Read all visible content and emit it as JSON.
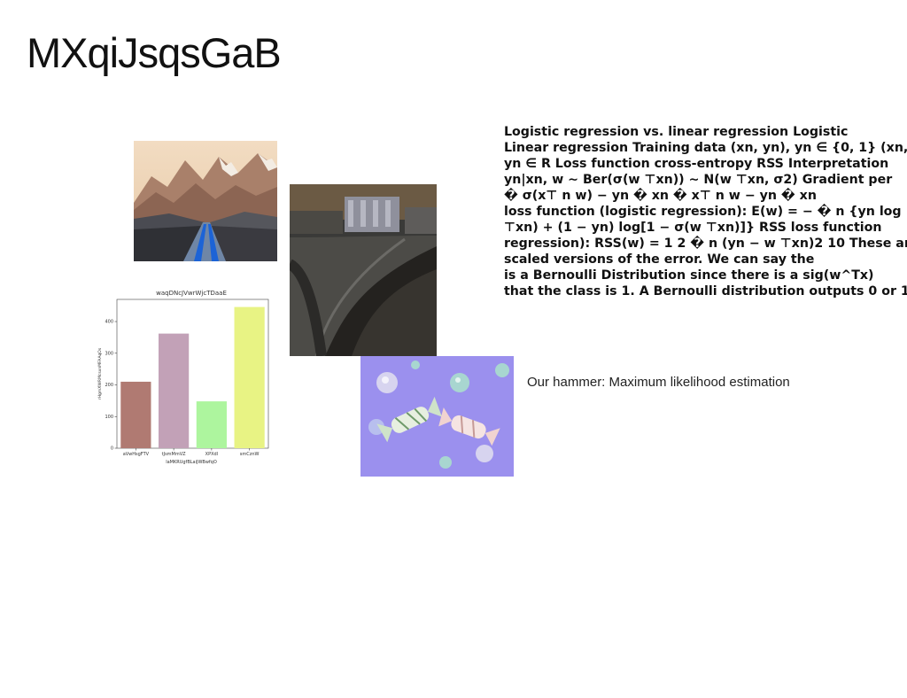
{
  "slide": {
    "title": "MXqiJsqsGaB",
    "body_text": "Logistic regression vs. linear regression Logistic\nLinear regression Training data (xn, yn), yn ∈ {0, 1} (xn,\nyn ∈ R Loss function cross-entropy RSS Interpretation\nyn|xn, w ∼ Ber(σ(w ⊤xn)) ∼ N(w ⊤xn, σ2) Gradient per\n� σ(x⊤ n w) − yn � xn � x⊤ n w − yn � xn\nloss function (logistic regression): E(w) = − � n {yn log\n⊤xn) + (1 − yn) log[1 − σ(w ⊤xn)]} RSS loss function\nregression): RSS(w) = 1 2 � n (yn − w ⊤xn)2 10 These are\nscaled versions of the error. We can say the\nis a Bernoulli Distribution since there is a sig(w^Tx)\nthat the class is 1. A Bernoulli distribution outputs 0 or 1",
    "caption": "Our hammer: Maximum likelihood estimation"
  },
  "chart_data": {
    "type": "bar",
    "title": "waqDNcJVwrWjcTDaaE",
    "xlabel": "laMKRUgfBLaiJWBwfqO",
    "ylabel": "rHgmXWRMcsxnMFAAqOs",
    "categories": [
      "aVwHsgFTV",
      "tJsmMmVZ",
      "XPXdl",
      "smCznW"
    ],
    "values": [
      210,
      362,
      148,
      446
    ],
    "colors": [
      "#b07a72",
      "#c2a1b7",
      "#adf59e",
      "#e8f384"
    ],
    "ylim": [
      0,
      470
    ],
    "yticks": [
      0,
      100,
      200,
      300,
      400
    ],
    "grid": false
  }
}
